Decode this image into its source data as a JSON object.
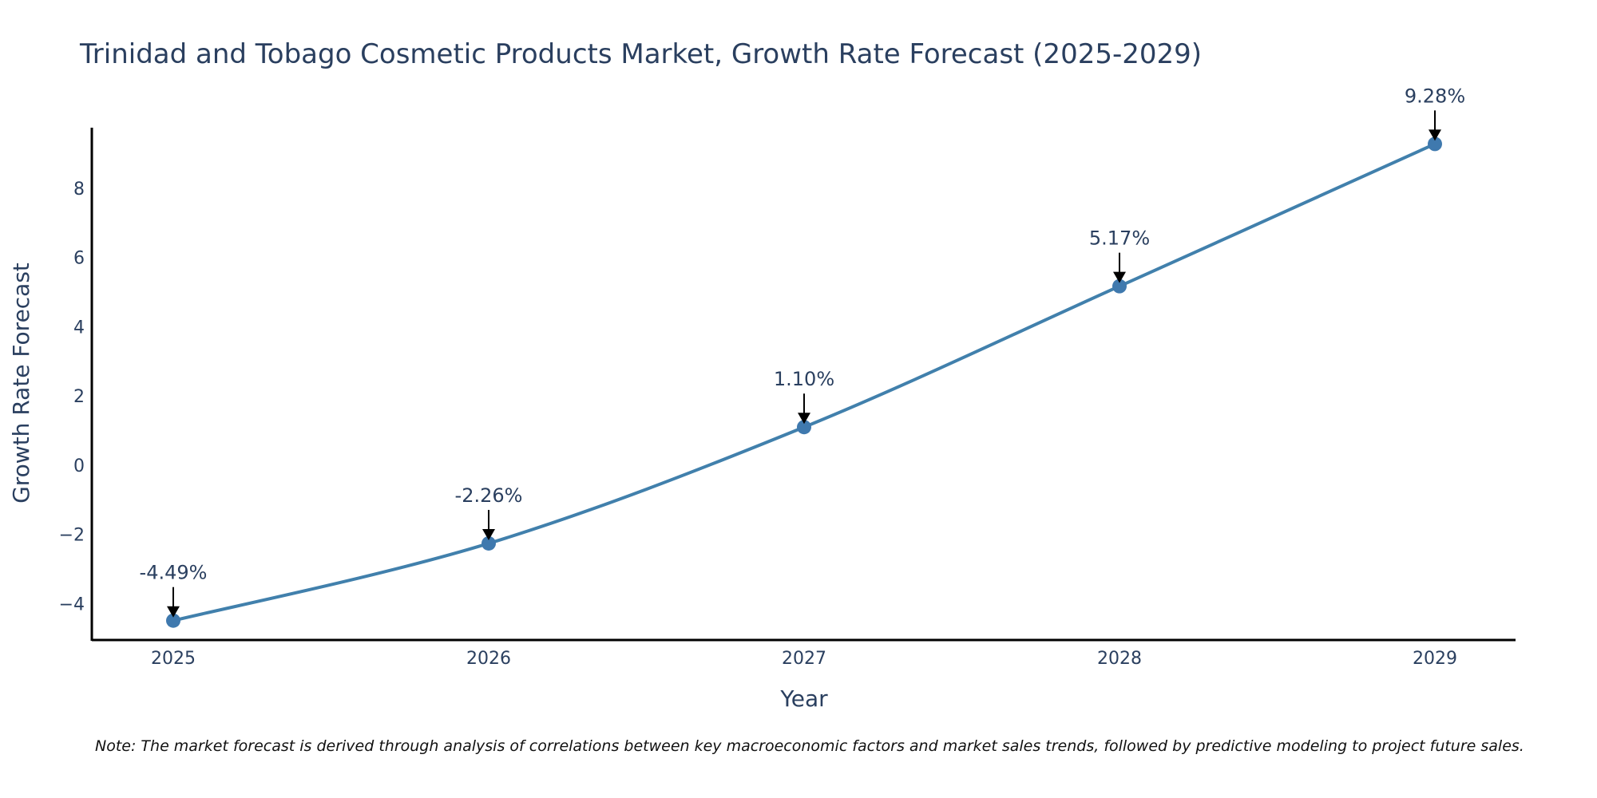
{
  "chart_data": {
    "type": "line",
    "title": "Trinidad and Tobago Cosmetic Products Market, Growth Rate Forecast (2025-2029)",
    "xlabel": "Year",
    "ylabel": "Growth Rate Forecast",
    "categories": [
      "2025",
      "2026",
      "2027",
      "2028",
      "2029"
    ],
    "series": [
      {
        "name": "Growth Rate Forecast",
        "values": [
          -4.49,
          -2.26,
          1.1,
          5.17,
          9.28
        ]
      }
    ],
    "data_labels": [
      "-4.49%",
      "-2.26%",
      "1.10%",
      "5.17%",
      "9.28%"
    ],
    "y_ticks": [
      -4,
      -2,
      0,
      2,
      4,
      6,
      8
    ],
    "y_tick_labels": [
      "−4",
      "−2",
      "0",
      "2",
      "4",
      "6",
      "8"
    ],
    "ylim": [
      -5.05,
      9.75
    ],
    "grid": false,
    "line_color": "#4180ac",
    "marker_color": "#3f79ae",
    "note": "Note: The market forecast is derived through analysis of correlations between key macroeconomic factors and market sales trends, followed by predictive modeling to project future sales."
  }
}
